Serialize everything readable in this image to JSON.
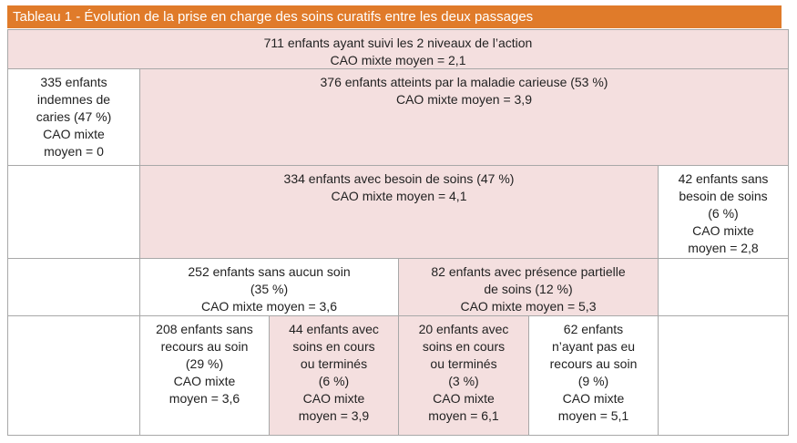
{
  "header": {
    "title": "Tableau 1 - Évolution de la prise en charge des soins curatifs entre les deux passages"
  },
  "rows": [
    {
      "cells": [
        {
          "lines": [
            "711 enfants ayant suivi les 2 niveaux de l’action",
            "CAO mixte moyen = 2,1"
          ]
        }
      ]
    },
    {
      "cells": [
        {
          "lines": [
            "335 enfants",
            "indemnes de",
            "caries (47 %)",
            "CAO mixte",
            "moyen = 0"
          ]
        },
        {
          "lines": [
            "376 enfants atteints par la maladie carieuse (53 %)",
            "CAO mixte moyen = 3,9"
          ]
        }
      ]
    },
    {
      "cells": [
        {
          "lines": [
            "334 enfants avec besoin de soins (47 %)",
            "CAO mixte moyen = 4,1"
          ]
        },
        {
          "lines": [
            "42 enfants sans",
            "besoin de soins",
            "(6 %)",
            "CAO mixte",
            "moyen = 2,8"
          ]
        }
      ]
    },
    {
      "cells": [
        {
          "lines": [
            "252 enfants sans aucun soin",
            "(35 %)",
            "CAO mixte moyen = 3,6"
          ]
        },
        {
          "lines": [
            "82 enfants avec présence partielle",
            "de soins (12 %)",
            "CAO mixte moyen = 5,3"
          ]
        }
      ]
    },
    {
      "cells": [
        {
          "lines": [
            "208 enfants sans",
            "recours au soin",
            "(29 %)",
            "CAO mixte",
            "moyen = 3,6"
          ]
        },
        {
          "lines": [
            "44 enfants avec",
            "soins en cours",
            "ou terminés",
            "(6 %)",
            "CAO mixte",
            "moyen = 3,9"
          ]
        },
        {
          "lines": [
            "20 enfants avec",
            "soins en cours",
            "ou terminés",
            "(3 %)",
            "CAO mixte",
            "moyen = 6,1"
          ]
        },
        {
          "lines": [
            "62 enfants",
            "n’ayant pas eu",
            "recours au soin",
            "(9 %)",
            "CAO mixte",
            "moyen = 5,1"
          ]
        }
      ]
    }
  ]
}
